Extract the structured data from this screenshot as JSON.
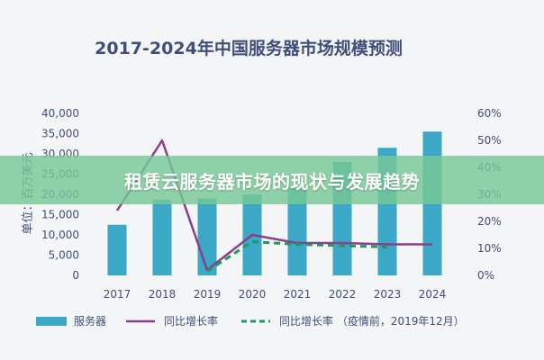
{
  "banner": {
    "text": "租赁云服务器市场的现状与发展趋势"
  },
  "chart_data": {
    "type": "bar",
    "title": "2017-2024年中国服务器市场规模预测",
    "ylabel": "单位：百万美元",
    "categories": [
      "2017",
      "2018",
      "2019",
      "2020",
      "2021",
      "2022",
      "2023",
      "2024"
    ],
    "ylim": [
      0,
      40000
    ],
    "yticks": [
      "40,000",
      "35,000",
      "30,000",
      "25,000",
      "20,000",
      "15,000",
      "10,000",
      "5,000",
      "0"
    ],
    "y2lim": [
      0,
      60
    ],
    "y2ticks": [
      "60%",
      "50%",
      "40%",
      "30%",
      "20%",
      "10%",
      "0%"
    ],
    "grid": false,
    "legend_position": "bottom",
    "series": [
      {
        "name": "服务器",
        "kind": "bar",
        "axis": "left",
        "color": "#3aa8c6",
        "values": [
          12500,
          18700,
          19000,
          20000,
          21500,
          28000,
          31500,
          35500
        ]
      },
      {
        "name": "同比增长率",
        "kind": "line",
        "axis": "right",
        "color": "#8b3e8e",
        "values": [
          24,
          50,
          2,
          15,
          12,
          12,
          11.5,
          11.5
        ]
      },
      {
        "name": "同比增长率 （疫情前，2019年12月）",
        "kind": "dashed-line",
        "axis": "right",
        "color": "#1e9a5a",
        "values": [
          null,
          null,
          1.5,
          12.5,
          11.5,
          11,
          10.5,
          null
        ]
      }
    ]
  }
}
